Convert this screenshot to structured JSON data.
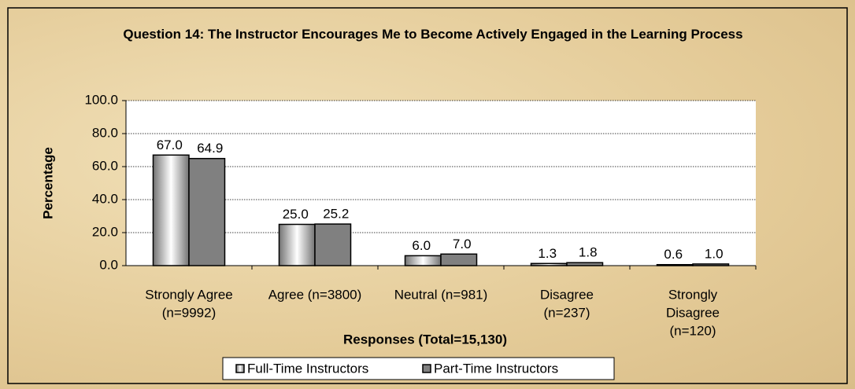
{
  "chart_data": {
    "type": "bar",
    "title": "Question 14:  The Instructor Encourages Me to Become Actively Engaged in the Learning Process",
    "categories": [
      [
        "Strongly Agree",
        "(n=9992)"
      ],
      [
        "Agree (n=3800)"
      ],
      [
        "Neutral (n=981)"
      ],
      [
        "Disagree",
        "(n=237)"
      ],
      [
        "Strongly",
        "Disagree",
        "(n=120)"
      ]
    ],
    "series": [
      {
        "name": "Full-Time Instructors",
        "color": "#ffffff",
        "values": [
          67.0,
          25.0,
          6.0,
          1.3,
          0.6
        ],
        "value_labels": [
          "67.0",
          "25.0",
          "6.0",
          "1.3",
          "0.6"
        ]
      },
      {
        "name": "Part-Time Instructors",
        "color": "#808080",
        "values": [
          64.9,
          25.2,
          7.0,
          1.8,
          1.0
        ],
        "value_labels": [
          "64.9",
          "25.2",
          "7.0",
          "1.8",
          "1.0"
        ]
      }
    ],
    "ylabel": "Percentage",
    "xlabel": "Responses (Total=15,130)",
    "ylim": [
      0,
      100
    ],
    "yticks": [
      {
        "value": 0,
        "label": "0.0"
      },
      {
        "value": 20,
        "label": "20.0"
      },
      {
        "value": 40,
        "label": "40.0"
      },
      {
        "value": 60,
        "label": "60.0"
      },
      {
        "value": 80,
        "label": "80.0"
      },
      {
        "value": 100,
        "label": "100.0"
      }
    ],
    "grid": true,
    "legend": "bottom"
  }
}
